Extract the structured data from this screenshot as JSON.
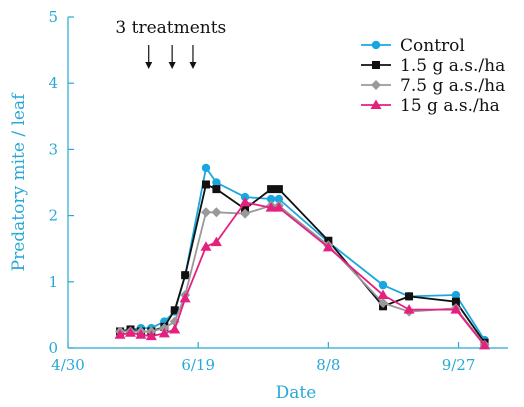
{
  "chart_data": {
    "type": "line",
    "title": "",
    "xlabel": "Date",
    "ylabel": "Predatory mite / leaf",
    "ylim": [
      0,
      5
    ],
    "yticks": [
      "0",
      "1",
      "2",
      "3",
      "4",
      "5"
    ],
    "x_tick_dates": [
      "2000-04-30",
      "2000-06-19",
      "2000-08-08",
      "2000-09-27"
    ],
    "x_tick_labels": [
      "4/30",
      "6/19",
      "8/8",
      "9/27"
    ],
    "xlim": [
      "2000-04-30",
      "2000-10-16"
    ],
    "grid": false,
    "legend_position": "top-right",
    "annotation": {
      "text": "3 treatments",
      "arrow_dates": [
        "2000-05-31",
        "2000-06-09",
        "2000-06-17"
      ]
    },
    "series": [
      {
        "name": "Control",
        "color": "#1aa7e0",
        "marker": "circle",
        "x": [
          "2000-05-20",
          "2000-05-24",
          "2000-05-28",
          "2000-06-01",
          "2000-06-06",
          "2000-06-10",
          "2000-06-14",
          "2000-06-22",
          "2000-06-26",
          "2000-07-07",
          "2000-07-17",
          "2000-07-20",
          "2000-08-08",
          "2000-08-29",
          "2000-09-08",
          "2000-09-26",
          "2000-10-07"
        ],
        "y": [
          0.25,
          0.28,
          0.3,
          0.3,
          0.4,
          0.55,
          1.1,
          2.72,
          2.5,
          2.28,
          2.25,
          2.25,
          1.6,
          0.95,
          0.78,
          0.8,
          0.12
        ]
      },
      {
        "name": "1.5 g a.s./ha",
        "color": "#111111",
        "marker": "square",
        "x": [
          "2000-05-20",
          "2000-05-24",
          "2000-05-28",
          "2000-06-01",
          "2000-06-06",
          "2000-06-10",
          "2000-06-14",
          "2000-06-22",
          "2000-06-26",
          "2000-07-07",
          "2000-07-17",
          "2000-07-20",
          "2000-08-08",
          "2000-08-29",
          "2000-09-08",
          "2000-09-26",
          "2000-10-07"
        ],
        "y": [
          0.25,
          0.28,
          0.25,
          0.25,
          0.32,
          0.57,
          1.1,
          2.47,
          2.4,
          2.1,
          2.4,
          2.4,
          1.62,
          0.63,
          0.78,
          0.7,
          0.08
        ]
      },
      {
        "name": "7.5 g a.s./ha",
        "color": "#999999",
        "marker": "diamond",
        "x": [
          "2000-05-20",
          "2000-05-24",
          "2000-05-28",
          "2000-06-01",
          "2000-06-06",
          "2000-06-10",
          "2000-06-14",
          "2000-06-22",
          "2000-06-26",
          "2000-07-07",
          "2000-07-17",
          "2000-07-20",
          "2000-08-08",
          "2000-08-29",
          "2000-09-08",
          "2000-09-26",
          "2000-10-07"
        ],
        "y": [
          0.25,
          0.25,
          0.25,
          0.25,
          0.3,
          0.4,
          0.8,
          2.05,
          2.05,
          2.03,
          2.15,
          2.15,
          1.55,
          0.68,
          0.55,
          0.6,
          0.05
        ]
      },
      {
        "name": "15 g a.s./ha",
        "color": "#e5207f",
        "marker": "triangle",
        "x": [
          "2000-05-20",
          "2000-05-24",
          "2000-05-28",
          "2000-06-01",
          "2000-06-06",
          "2000-06-10",
          "2000-06-14",
          "2000-06-22",
          "2000-06-26",
          "2000-07-07",
          "2000-07-17",
          "2000-07-20",
          "2000-08-08",
          "2000-08-29",
          "2000-09-08",
          "2000-09-26",
          "2000-10-07"
        ],
        "y": [
          0.2,
          0.23,
          0.2,
          0.18,
          0.22,
          0.28,
          0.75,
          1.53,
          1.6,
          2.2,
          2.12,
          2.12,
          1.52,
          0.8,
          0.58,
          0.58,
          0.04
        ]
      }
    ]
  }
}
